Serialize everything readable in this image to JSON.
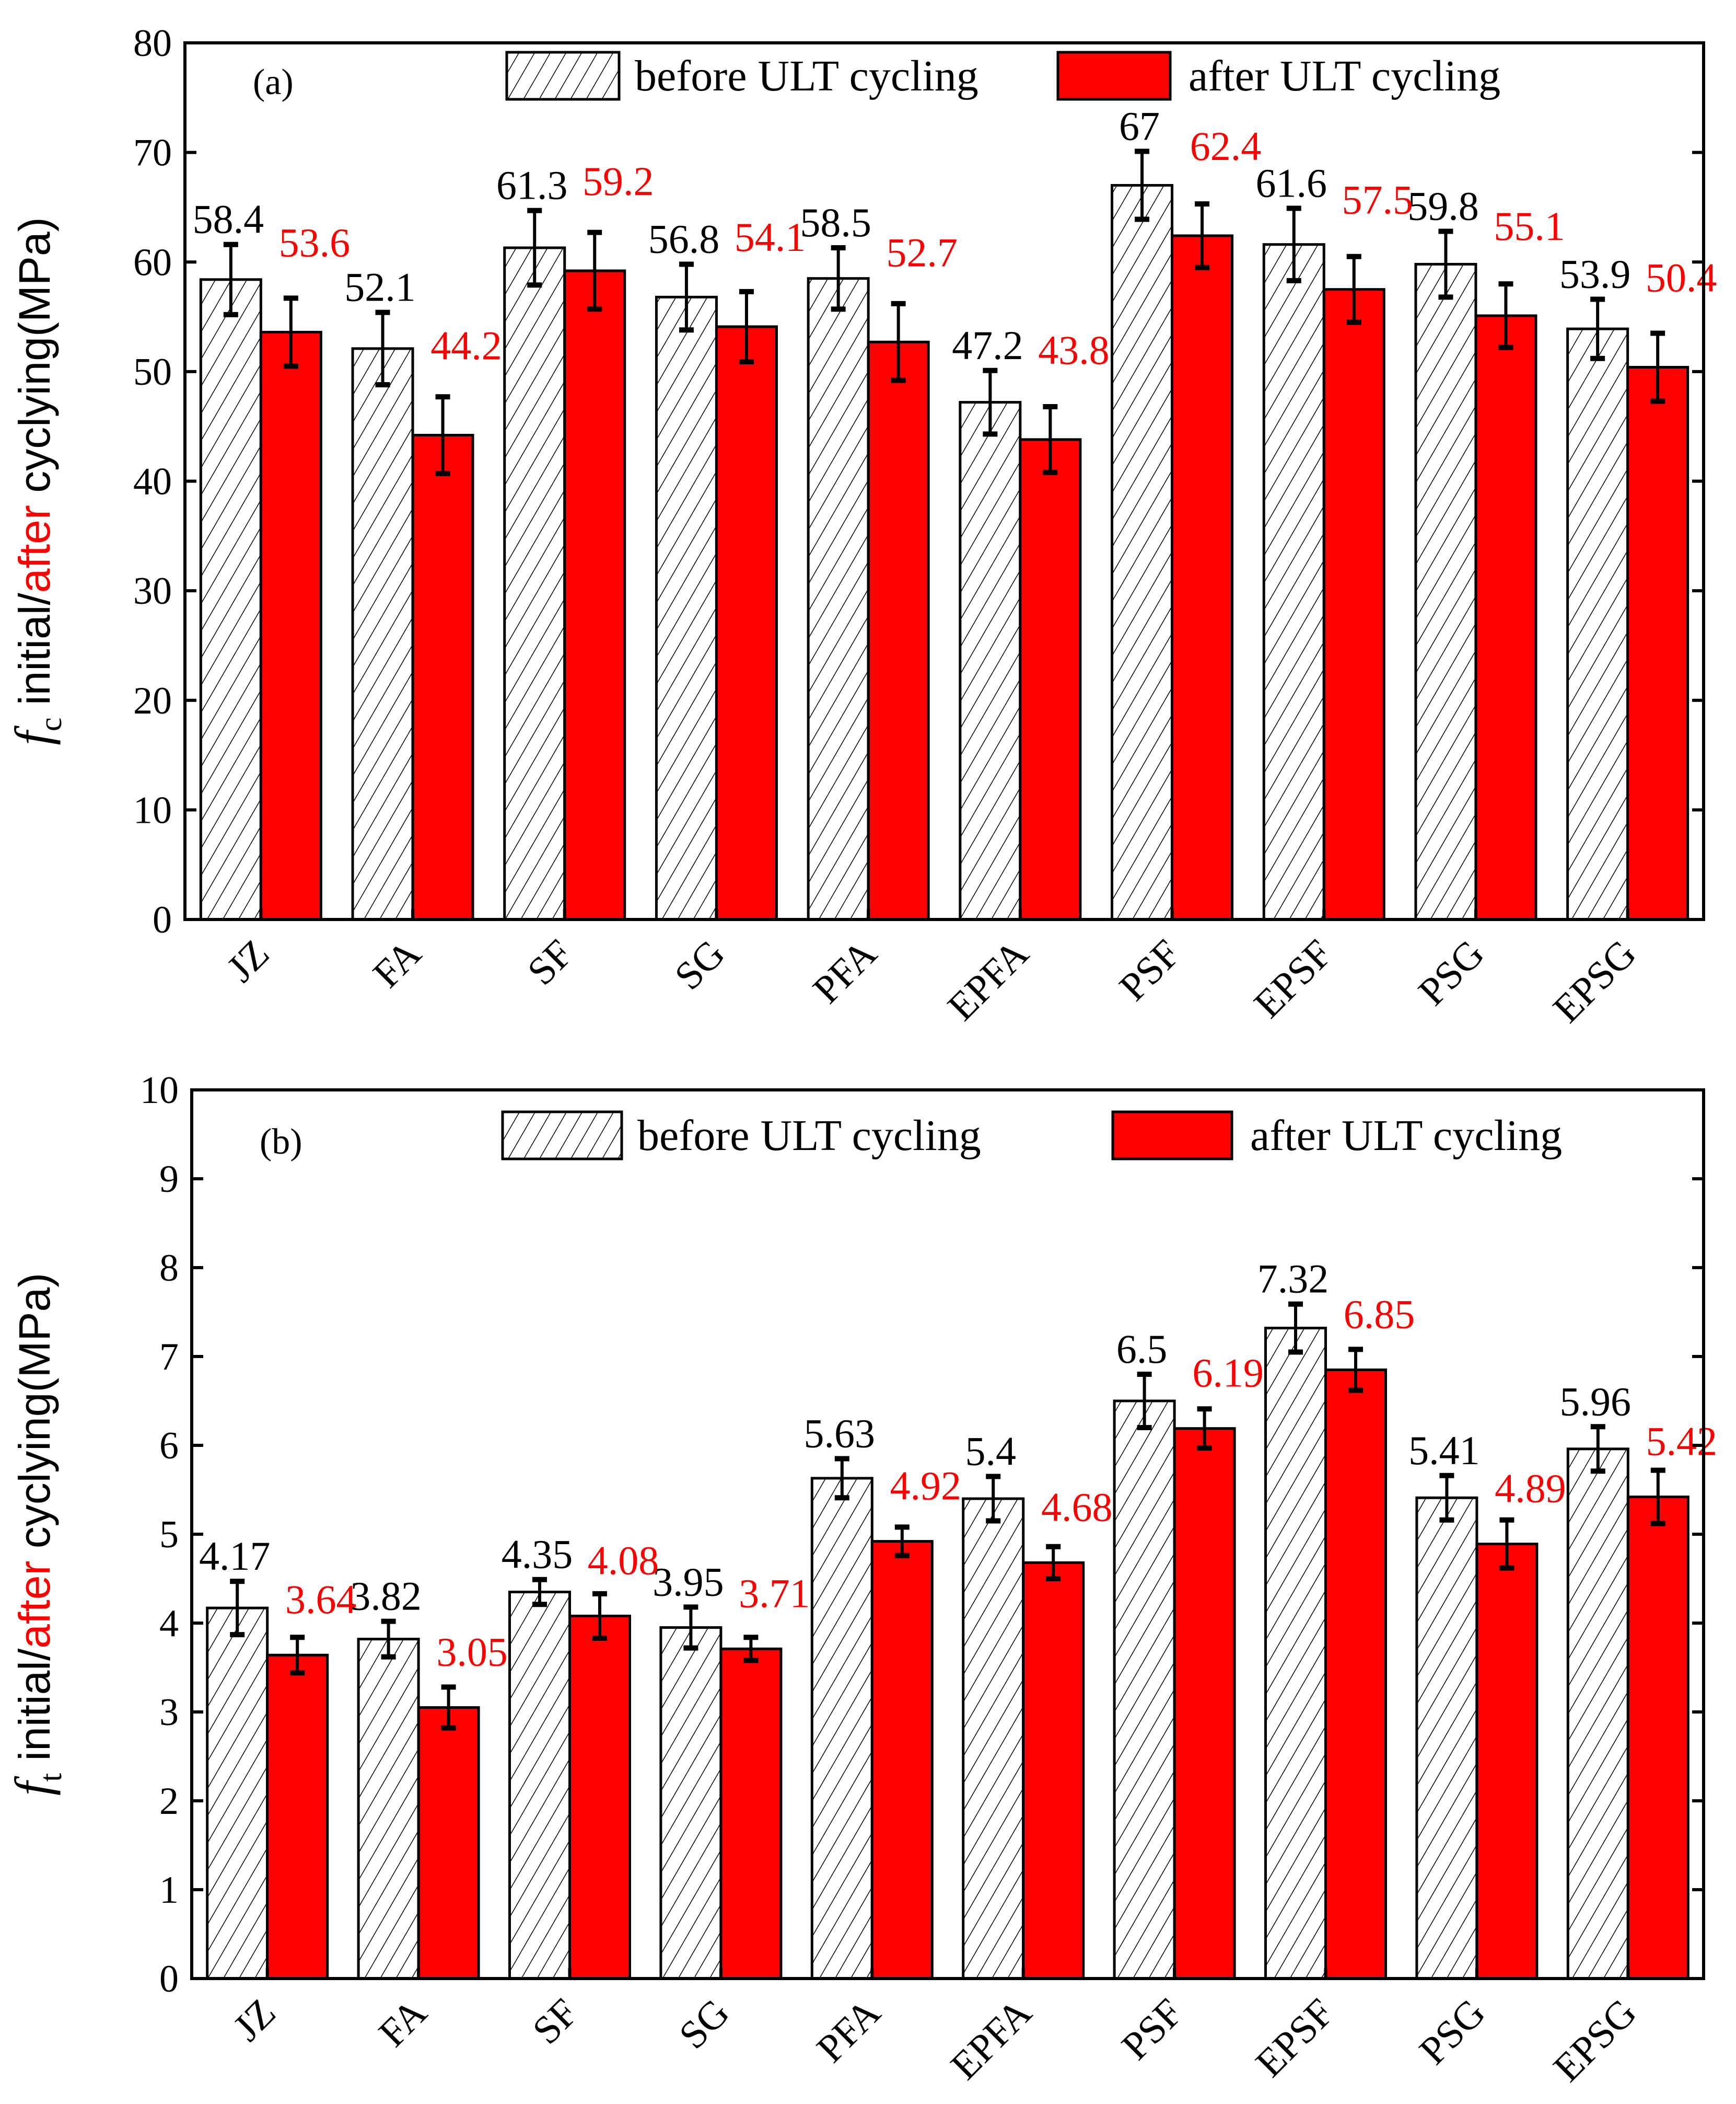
{
  "chart_data": [
    {
      "type": "bar",
      "panel_label": "(a)",
      "ylabel": {
        "symbol": "f",
        "subscript": "c",
        "part1": " initial/",
        "part2": "after",
        "part3": " cyclying(MPa)"
      },
      "ylim": [
        0,
        80
      ],
      "yticks": [
        0,
        10,
        20,
        30,
        40,
        50,
        60,
        70,
        80
      ],
      "categories": [
        "JZ",
        "FA",
        "SF",
        "SG",
        "PFA",
        "EPFA",
        "PSF",
        "EPSF",
        "PSG",
        "EPSG"
      ],
      "legend_position": "top-right",
      "series": [
        {
          "name": "before ULT cycling",
          "fill": "hatch",
          "label_color": "#000000",
          "values": [
            58.4,
            52.1,
            61.3,
            56.8,
            58.5,
            47.2,
            67,
            61.6,
            59.8,
            53.9
          ],
          "errors": [
            3.2,
            3.3,
            3.4,
            3.0,
            2.8,
            2.9,
            3.1,
            3.3,
            3.0,
            2.7
          ]
        },
        {
          "name": "after ULT cycling",
          "fill": "#ff0000",
          "label_color": "#ff0000",
          "values": [
            53.6,
            44.2,
            59.2,
            54.1,
            52.7,
            43.8,
            62.4,
            57.5,
            55.1,
            50.4
          ],
          "errors": [
            3.1,
            3.5,
            3.5,
            3.2,
            3.5,
            3.0,
            2.9,
            3.0,
            2.9,
            3.1
          ]
        }
      ]
    },
    {
      "type": "bar",
      "panel_label": "(b)",
      "ylabel": {
        "symbol": "f",
        "subscript": "t",
        "part1": " initial/",
        "part2": "after",
        "part3": " cyclying(MPa)"
      },
      "ylim": [
        0,
        10
      ],
      "yticks": [
        0,
        1,
        2,
        3,
        4,
        5,
        6,
        7,
        8,
        9,
        10
      ],
      "categories": [
        "JZ",
        "FA",
        "SF",
        "SG",
        "PFA",
        "EPFA",
        "PSF",
        "EPSF",
        "PSG",
        "EPSG"
      ],
      "legend_position": "top-right",
      "series": [
        {
          "name": "before ULT cycling",
          "fill": "hatch",
          "label_color": "#000000",
          "values": [
            4.17,
            3.82,
            4.35,
            3.95,
            5.63,
            5.4,
            6.5,
            7.32,
            5.41,
            5.96
          ],
          "errors": [
            0.3,
            0.2,
            0.14,
            0.23,
            0.22,
            0.25,
            0.3,
            0.27,
            0.25,
            0.25
          ]
        },
        {
          "name": "after ULT cycling",
          "fill": "#ff0000",
          "label_color": "#ff0000",
          "values": [
            3.64,
            3.05,
            4.08,
            3.71,
            4.92,
            4.68,
            6.19,
            6.85,
            4.89,
            5.42
          ],
          "errors": [
            0.2,
            0.23,
            0.25,
            0.13,
            0.16,
            0.18,
            0.22,
            0.23,
            0.27,
            0.3
          ]
        }
      ]
    }
  ]
}
